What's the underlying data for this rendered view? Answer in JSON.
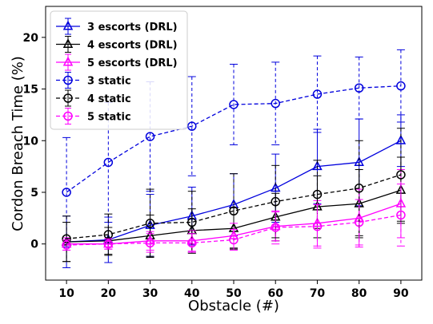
{
  "chart_data": {
    "type": "line",
    "xlabel": "Obstacle (#)",
    "ylabel": "Cordon Breach Time (%)",
    "x": [
      10,
      20,
      30,
      40,
      50,
      60,
      70,
      80,
      90
    ],
    "xlim": [
      5,
      95
    ],
    "ylim": [
      -3.5,
      23
    ],
    "xticks": [
      "10",
      "20",
      "30",
      "40",
      "50",
      "60",
      "70",
      "80",
      "90"
    ],
    "yticks": [
      "0",
      "5",
      "10",
      "15",
      "20"
    ],
    "grid": false,
    "legend_position": "upper-left",
    "series": [
      {
        "name": "3 escorts (DRL)",
        "color": "#0000dd",
        "dashed": false,
        "marker": "triangle",
        "values": [
          0.2,
          0.4,
          1.8,
          2.7,
          3.8,
          5.4,
          7.5,
          7.9,
          10.0
        ],
        "errors": [
          2.5,
          2.2,
          3.0,
          2.8,
          3.0,
          3.3,
          3.6,
          4.2,
          2.5
        ]
      },
      {
        "name": "4 escorts (DRL)",
        "color": "#000000",
        "dashed": false,
        "marker": "triangle",
        "values": [
          0.2,
          0.3,
          0.8,
          1.3,
          1.5,
          2.6,
          3.6,
          3.9,
          5.2
        ],
        "errors": [
          1.9,
          1.3,
          2.0,
          2.1,
          2.0,
          2.3,
          3.0,
          3.3,
          3.2
        ]
      },
      {
        "name": "5 escorts (DRL)",
        "color": "#ff00ff",
        "dashed": false,
        "marker": "triangle",
        "values": [
          0.0,
          0.0,
          0.3,
          0.3,
          0.8,
          1.7,
          2.0,
          2.5,
          3.9
        ],
        "errors": [
          0.6,
          0.5,
          0.9,
          1.0,
          1.2,
          1.4,
          2.2,
          2.8,
          3.3
        ]
      },
      {
        "name": "3 static",
        "color": "#0000dd",
        "dashed": true,
        "marker": "circle",
        "values": [
          5.0,
          7.9,
          10.4,
          11.4,
          13.5,
          13.6,
          14.5,
          15.1,
          15.3
        ],
        "errors": [
          5.3,
          5.8,
          5.3,
          4.8,
          3.9,
          4.0,
          3.7,
          3.0,
          3.5
        ]
      },
      {
        "name": "4 static",
        "color": "#000000",
        "dashed": true,
        "marker": "circle",
        "values": [
          0.5,
          0.9,
          2.0,
          2.1,
          3.2,
          4.1,
          4.8,
          5.4,
          6.7
        ],
        "errors": [
          2.2,
          2.0,
          3.3,
          3.0,
          3.6,
          3.5,
          3.3,
          4.6,
          4.5
        ]
      },
      {
        "name": "5 static",
        "color": "#ff00ff",
        "dashed": true,
        "marker": "circle",
        "values": [
          -0.1,
          0.0,
          0.1,
          0.1,
          0.4,
          1.6,
          1.7,
          2.1,
          2.8
        ],
        "errors": [
          0.5,
          0.5,
          0.9,
          0.9,
          1.0,
          1.6,
          2.1,
          2.2,
          3.0
        ]
      }
    ]
  }
}
